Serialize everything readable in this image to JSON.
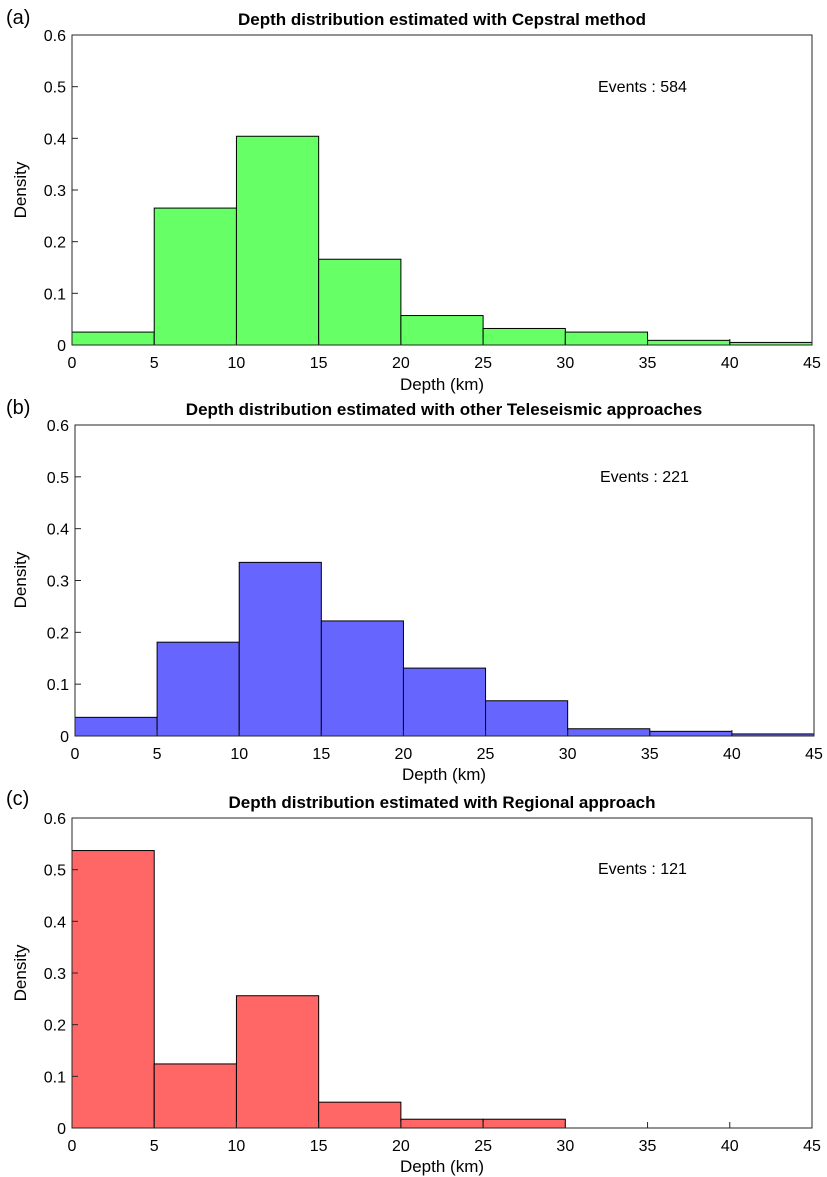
{
  "chart_data": [
    {
      "type": "bar",
      "panel_label": "(a)",
      "title": "Depth distribution estimated with Cepstral method",
      "xlabel": "Depth (km)",
      "ylabel": "Density",
      "annotation": "Events : 584",
      "bin_edges": [
        0,
        5,
        10,
        15,
        20,
        25,
        30,
        35,
        40,
        45
      ],
      "values": [
        0.025,
        0.265,
        0.404,
        0.166,
        0.057,
        0.032,
        0.025,
        0.009,
        0.005
      ],
      "xlim": [
        0,
        45
      ],
      "ylim": [
        0,
        0.6
      ],
      "xticks": [
        "0",
        "5",
        "10",
        "15",
        "20",
        "25",
        "30",
        "35",
        "40",
        "45"
      ],
      "yticks": [
        "0",
        "0.1",
        "0.2",
        "0.3",
        "0.4",
        "0.5",
        "0.6"
      ],
      "bar_color": "#66ff66",
      "grid": false
    },
    {
      "type": "bar",
      "panel_label": "(b)",
      "title": "Depth distribution estimated with other Teleseismic approaches",
      "xlabel": "Depth (km)",
      "ylabel": "Density",
      "annotation": "Events : 221",
      "bin_edges": [
        0,
        5,
        10,
        15,
        20,
        25,
        30,
        35,
        40,
        45
      ],
      "values": [
        0.036,
        0.181,
        0.335,
        0.222,
        0.131,
        0.068,
        0.014,
        0.009,
        0.004
      ],
      "xlim": [
        0,
        45
      ],
      "ylim": [
        0,
        0.6
      ],
      "xticks": [
        "0",
        "5",
        "10",
        "15",
        "20",
        "25",
        "30",
        "35",
        "40",
        "45"
      ],
      "yticks": [
        "0",
        "0.1",
        "0.2",
        "0.3",
        "0.4",
        "0.5",
        "0.6"
      ],
      "bar_color": "#6666ff",
      "grid": false
    },
    {
      "type": "bar",
      "panel_label": "(c)",
      "title": "Depth distribution estimated with Regional approach",
      "xlabel": "Depth (km)",
      "ylabel": "Density",
      "annotation": "Events : 121",
      "bin_edges": [
        0,
        5,
        10,
        15,
        20,
        25,
        30
      ],
      "values": [
        0.537,
        0.124,
        0.256,
        0.05,
        0.017,
        0.017
      ],
      "xlim": [
        0,
        45
      ],
      "ylim": [
        0,
        0.6
      ],
      "xticks": [
        "0",
        "5",
        "10",
        "15",
        "20",
        "25",
        "30",
        "35",
        "40",
        "45"
      ],
      "yticks": [
        "0",
        "0.1",
        "0.2",
        "0.3",
        "0.4",
        "0.5",
        "0.6"
      ],
      "bar_color": "#ff6666",
      "grid": false
    }
  ]
}
